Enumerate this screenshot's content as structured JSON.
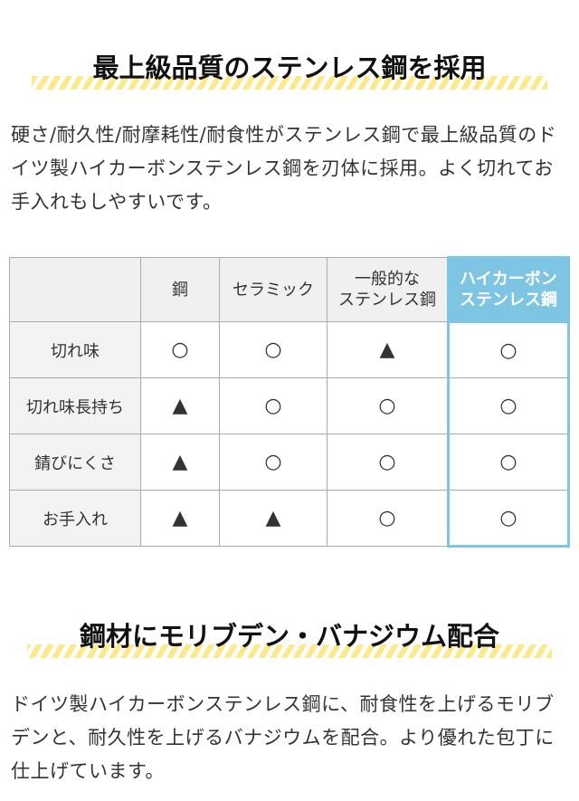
{
  "section1": {
    "heading": "最上級品質のステンレス鋼を採用",
    "body": "硬さ/耐久性/耐摩耗性/耐食性がステンレス鋼で最上級品質のドイツ製ハイカーボンステンレス鋼を刃体に採用。よく切れてお手入れもしやすいです。"
  },
  "table": {
    "headers": [
      "",
      "鋼",
      "セラミック",
      "一般的な\nステンレス鋼",
      "ハイカーボン\nステンレス鋼"
    ],
    "highlight_color": "#7ec4e3",
    "rows": [
      {
        "label": "切れ味",
        "values": [
          "○",
          "○",
          "▲",
          "○"
        ]
      },
      {
        "label": "切れ味長持ち",
        "values": [
          "▲",
          "○",
          "○",
          "○"
        ]
      },
      {
        "label": "錆びにくさ",
        "values": [
          "▲",
          "○",
          "○",
          "○"
        ]
      },
      {
        "label": "お手入れ",
        "values": [
          "▲",
          "▲",
          "○",
          "○"
        ]
      }
    ]
  },
  "section2": {
    "heading": "鋼材にモリブデン・バナジウム配合",
    "body": "ドイツ製ハイカーボンステンレス鋼に、耐食性を上げるモリブデンと、耐久性を上げるバナジウムを配合。より優れた包丁に仕上げています。"
  }
}
